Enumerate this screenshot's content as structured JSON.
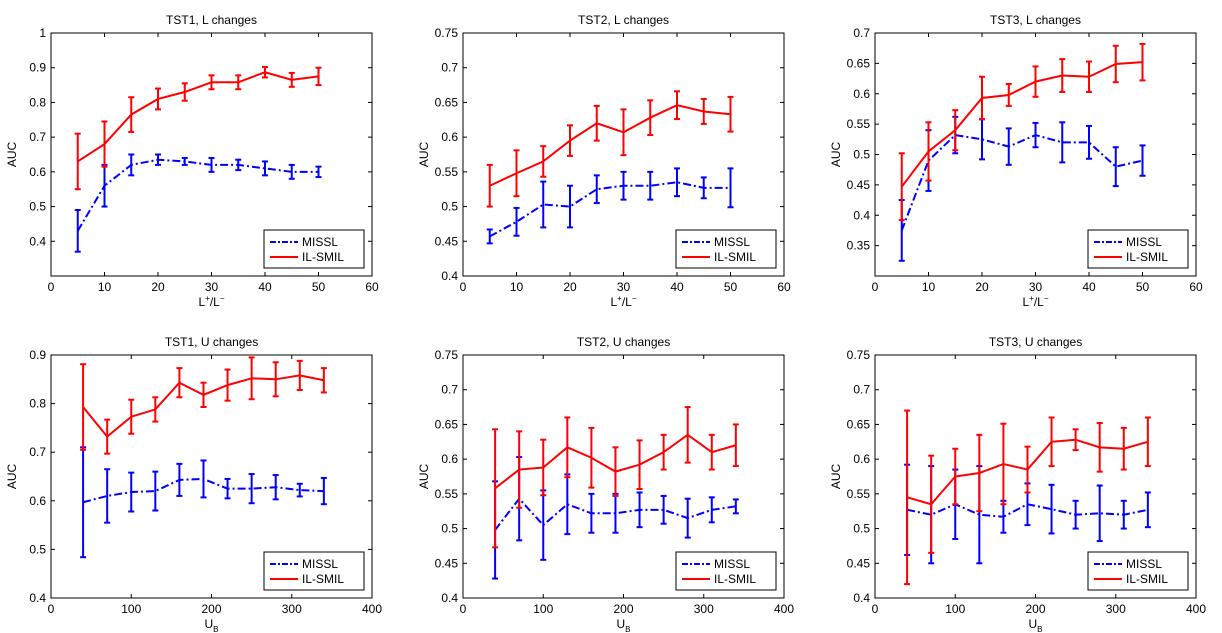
{
  "figure": {
    "panels": [
      {
        "title": "TST1, L changes",
        "ylabel": "AUC",
        "xlabel_parts": [
          "L",
          "+",
          "/L",
          "−"
        ],
        "yticks": [
          "0.4",
          "0.5",
          "0.6",
          "0.7",
          "0.8",
          "0.9",
          "1"
        ],
        "xticks": [
          "0",
          "10",
          "20",
          "30",
          "40",
          "50",
          "60"
        ],
        "legend": [
          "MISSL",
          "IL-SMIL"
        ]
      },
      {
        "title": "TST2, L changes",
        "ylabel": "AUC",
        "xlabel_parts": [
          "L",
          "+",
          "/L",
          "−"
        ],
        "yticks": [
          "0.4",
          "0.45",
          "0.5",
          "0.55",
          "0.6",
          "0.65",
          "0.7",
          "0.75"
        ],
        "xticks": [
          "0",
          "10",
          "20",
          "30",
          "40",
          "50",
          "60"
        ],
        "legend": [
          "MISSL",
          "IL-SMIL"
        ]
      },
      {
        "title": "TST3, L changes",
        "ylabel": "AUC",
        "xlabel_parts": [
          "L",
          "+",
          "/L",
          "−"
        ],
        "yticks": [
          "0.35",
          "0.4",
          "0.45",
          "0.5",
          "0.55",
          "0.6",
          "0.65",
          "0.7"
        ],
        "xticks": [
          "0",
          "10",
          "20",
          "30",
          "40",
          "50",
          "60"
        ],
        "legend": [
          "MISSL",
          "IL-SMIL"
        ]
      },
      {
        "title": "TST1, U changes",
        "ylabel": "AUC",
        "xlabel_parts": [
          "U",
          "B"
        ],
        "yticks": [
          "0.4",
          "0.5",
          "0.6",
          "0.7",
          "0.8",
          "0.9"
        ],
        "xticks": [
          "0",
          "100",
          "200",
          "300",
          "400"
        ],
        "legend": [
          "MISSL",
          "IL-SMIL"
        ]
      },
      {
        "title": "TST2, U changes",
        "ylabel": "AUC",
        "xlabel_parts": [
          "U",
          "B"
        ],
        "yticks": [
          "0.4",
          "0.45",
          "0.5",
          "0.55",
          "0.6",
          "0.65",
          "0.7",
          "0.75"
        ],
        "xticks": [
          "0",
          "100",
          "200",
          "300",
          "400"
        ],
        "legend": [
          "MISSL",
          "IL-SMIL"
        ]
      },
      {
        "title": "TST3, U changes",
        "ylabel": "AUC",
        "xlabel_parts": [
          "U",
          "B"
        ],
        "yticks": [
          "0.4",
          "0.45",
          "0.5",
          "0.55",
          "0.6",
          "0.65",
          "0.7",
          "0.75"
        ],
        "xticks": [
          "0",
          "100",
          "200",
          "300",
          "400"
        ],
        "legend": [
          "MISSL",
          "IL-SMIL"
        ]
      }
    ]
  },
  "colors": {
    "missl": "#0000ff",
    "ilsmil": "#ff0000",
    "axes": "#000000"
  },
  "chart_data": [
    {
      "type": "line",
      "title": "TST1, L changes",
      "xlabel": "L+/L−",
      "ylabel": "AUC",
      "xlim": [
        0,
        60
      ],
      "ylim": [
        0.3,
        1.0
      ],
      "legend_location": "bottom-right",
      "x": [
        5,
        10,
        15,
        20,
        25,
        30,
        35,
        40,
        45,
        50
      ],
      "series": [
        {
          "name": "MISSL",
          "style": "dash-dot",
          "values": [
            0.43,
            0.56,
            0.62,
            0.635,
            0.63,
            0.62,
            0.62,
            0.61,
            0.6,
            0.6
          ],
          "errors": [
            0.06,
            0.06,
            0.03,
            0.015,
            0.01,
            0.02,
            0.015,
            0.02,
            0.02,
            0.015
          ]
        },
        {
          "name": "IL-SMIL",
          "style": "solid",
          "values": [
            0.63,
            0.68,
            0.765,
            0.81,
            0.83,
            0.858,
            0.858,
            0.887,
            0.865,
            0.875
          ],
          "errors": [
            0.08,
            0.065,
            0.05,
            0.03,
            0.025,
            0.02,
            0.02,
            0.015,
            0.02,
            0.025
          ]
        }
      ]
    },
    {
      "type": "line",
      "title": "TST2, L changes",
      "xlabel": "L+/L−",
      "ylabel": "AUC",
      "xlim": [
        0,
        60
      ],
      "ylim": [
        0.4,
        0.75
      ],
      "legend_location": "bottom-right",
      "x": [
        5,
        10,
        15,
        20,
        25,
        30,
        35,
        40,
        45,
        50
      ],
      "series": [
        {
          "name": "MISSL",
          "style": "dash-dot",
          "values": [
            0.457,
            0.478,
            0.503,
            0.5,
            0.525,
            0.53,
            0.53,
            0.535,
            0.527,
            0.527
          ],
          "errors": [
            0.01,
            0.02,
            0.033,
            0.03,
            0.02,
            0.02,
            0.02,
            0.02,
            0.015,
            0.028
          ]
        },
        {
          "name": "IL-SMIL",
          "style": "solid",
          "values": [
            0.53,
            0.548,
            0.565,
            0.595,
            0.62,
            0.607,
            0.628,
            0.646,
            0.637,
            0.633
          ],
          "errors": [
            0.03,
            0.033,
            0.022,
            0.022,
            0.025,
            0.033,
            0.025,
            0.02,
            0.018,
            0.025
          ]
        }
      ]
    },
    {
      "type": "line",
      "title": "TST3, L changes",
      "xlabel": "L+/L−",
      "ylabel": "AUC",
      "xlim": [
        0,
        60
      ],
      "ylim": [
        0.3,
        0.7
      ],
      "legend_location": "bottom-right",
      "x": [
        5,
        10,
        15,
        20,
        25,
        30,
        35,
        40,
        45,
        50
      ],
      "series": [
        {
          "name": "MISSL",
          "style": "dash-dot",
          "values": [
            0.375,
            0.49,
            0.532,
            0.525,
            0.513,
            0.532,
            0.52,
            0.52,
            0.48,
            0.49
          ],
          "errors": [
            0.05,
            0.05,
            0.03,
            0.033,
            0.03,
            0.02,
            0.033,
            0.027,
            0.032,
            0.025
          ]
        },
        {
          "name": "IL-SMIL",
          "style": "solid",
          "values": [
            0.447,
            0.505,
            0.54,
            0.593,
            0.598,
            0.62,
            0.63,
            0.628,
            0.649,
            0.652
          ],
          "errors": [
            0.055,
            0.048,
            0.033,
            0.035,
            0.018,
            0.025,
            0.027,
            0.025,
            0.03,
            0.03
          ]
        }
      ]
    },
    {
      "type": "line",
      "title": "TST1, U changes",
      "xlabel": "UB",
      "ylabel": "AUC",
      "xlim": [
        0,
        400
      ],
      "ylim": [
        0.4,
        0.9
      ],
      "legend_location": "bottom-right",
      "x": [
        40,
        70,
        100,
        130,
        160,
        190,
        220,
        250,
        280,
        310,
        340
      ],
      "series": [
        {
          "name": "MISSL",
          "style": "dash-dot",
          "values": [
            0.597,
            0.61,
            0.618,
            0.62,
            0.643,
            0.645,
            0.625,
            0.625,
            0.628,
            0.622,
            0.62
          ],
          "errors": [
            0.113,
            0.055,
            0.04,
            0.04,
            0.033,
            0.038,
            0.02,
            0.03,
            0.025,
            0.013,
            0.027
          ]
        },
        {
          "name": "IL-SMIL",
          "style": "solid",
          "values": [
            0.793,
            0.732,
            0.773,
            0.788,
            0.843,
            0.818,
            0.838,
            0.852,
            0.85,
            0.858,
            0.848
          ],
          "errors": [
            0.088,
            0.035,
            0.035,
            0.025,
            0.03,
            0.025,
            0.032,
            0.043,
            0.035,
            0.03,
            0.025
          ]
        }
      ]
    },
    {
      "type": "line",
      "title": "TST2, U changes",
      "xlabel": "UB",
      "ylabel": "AUC",
      "xlim": [
        0,
        400
      ],
      "ylim": [
        0.4,
        0.75
      ],
      "legend_location": "bottom-right",
      "x": [
        40,
        70,
        100,
        130,
        160,
        190,
        220,
        250,
        280,
        310,
        340
      ],
      "series": [
        {
          "name": "MISSL",
          "style": "dash-dot",
          "values": [
            0.498,
            0.543,
            0.505,
            0.535,
            0.522,
            0.522,
            0.527,
            0.527,
            0.515,
            0.527,
            0.532
          ],
          "errors": [
            0.07,
            0.06,
            0.05,
            0.043,
            0.028,
            0.028,
            0.025,
            0.02,
            0.028,
            0.018,
            0.01
          ]
        },
        {
          "name": "IL-SMIL",
          "style": "solid",
          "values": [
            0.558,
            0.585,
            0.588,
            0.617,
            0.602,
            0.582,
            0.592,
            0.61,
            0.635,
            0.61,
            0.62
          ],
          "errors": [
            0.085,
            0.055,
            0.04,
            0.043,
            0.043,
            0.035,
            0.035,
            0.025,
            0.04,
            0.025,
            0.03
          ]
        }
      ]
    },
    {
      "type": "line",
      "title": "TST3, U changes",
      "xlabel": "UB",
      "ylabel": "AUC",
      "xlim": [
        0,
        400
      ],
      "ylim": [
        0.4,
        0.75
      ],
      "legend_location": "bottom-right",
      "x": [
        40,
        70,
        100,
        130,
        160,
        190,
        220,
        250,
        280,
        310,
        340
      ],
      "series": [
        {
          "name": "MISSL",
          "style": "dash-dot",
          "values": [
            0.527,
            0.52,
            0.535,
            0.52,
            0.517,
            0.535,
            0.528,
            0.52,
            0.522,
            0.52,
            0.527
          ],
          "errors": [
            0.065,
            0.07,
            0.05,
            0.07,
            0.023,
            0.03,
            0.035,
            0.02,
            0.04,
            0.02,
            0.025
          ]
        },
        {
          "name": "IL-SMIL",
          "style": "solid",
          "values": [
            0.545,
            0.535,
            0.575,
            0.58,
            0.593,
            0.585,
            0.625,
            0.628,
            0.617,
            0.615,
            0.625
          ],
          "errors": [
            0.125,
            0.07,
            0.04,
            0.055,
            0.058,
            0.033,
            0.035,
            0.015,
            0.035,
            0.03,
            0.035
          ]
        }
      ]
    }
  ]
}
